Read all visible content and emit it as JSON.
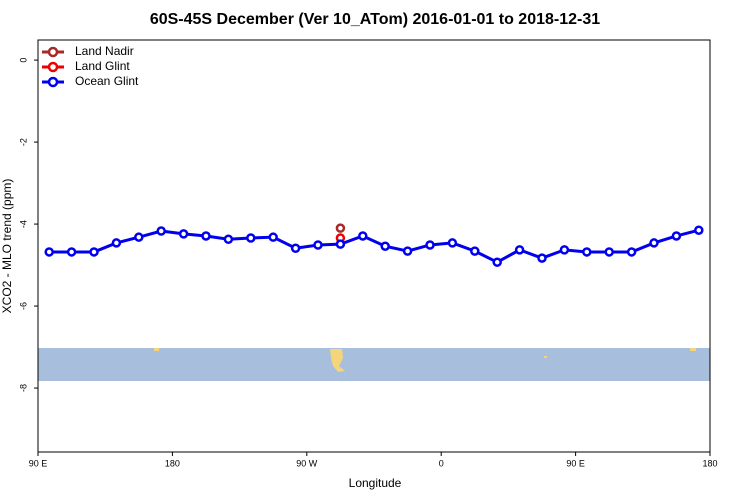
{
  "chart_data": {
    "type": "line",
    "title": "60S-45S December (Ver 10_ATom)   2016-01-01 to 2018-12-31",
    "x_label": "Longitude",
    "y_label": "XCO2 - MLO trend (ppm)",
    "xlim": [
      90,
      540
    ],
    "xticks": [
      {
        "value": 90,
        "label": "90 E"
      },
      {
        "value": 180,
        "label": "180"
      },
      {
        "value": 270,
        "label": "90 W"
      },
      {
        "value": 360,
        "label": "0"
      },
      {
        "value": 450,
        "label": "90 E"
      },
      {
        "value": 540,
        "label": "180"
      }
    ],
    "ylim": [
      -9.56,
      0.49
    ],
    "yticks": [
      0,
      -2,
      -4,
      -6,
      -8
    ],
    "legend": "top-left",
    "series": [
      {
        "name": "Land Nadir",
        "color": "#a52a2a",
        "x": [
          292.5
        ],
        "values": [
          -4.1
        ]
      },
      {
        "name": "Land Glint",
        "color": "#ee0000",
        "x": [
          292.5
        ],
        "values": [
          -4.34
        ]
      },
      {
        "name": "Ocean Glint",
        "color": "#0000ee",
        "x": [
          97.5,
          112.5,
          127.5,
          142.5,
          157.5,
          172.5,
          187.5,
          202.5,
          217.5,
          232.5,
          247.5,
          262.5,
          277.5,
          292.5,
          307.5,
          322.5,
          337.5,
          352.5,
          367.5,
          382.5,
          397.5,
          412.5,
          427.5,
          442.5,
          457.5,
          472.5,
          487.5,
          502.5,
          517.5,
          532.5
        ],
        "values": [
          -4.68,
          -4.68,
          -4.68,
          -4.46,
          -4.32,
          -4.17,
          -4.24,
          -4.29,
          -4.37,
          -4.34,
          -4.32,
          -4.59,
          -4.51,
          -4.49,
          -4.29,
          -4.54,
          -4.66,
          -4.51,
          -4.46,
          -4.66,
          -4.93,
          -4.63,
          -4.83,
          -4.63,
          -4.68,
          -4.68,
          -4.68,
          -4.46,
          -4.29,
          -4.15
        ]
      }
    ]
  }
}
